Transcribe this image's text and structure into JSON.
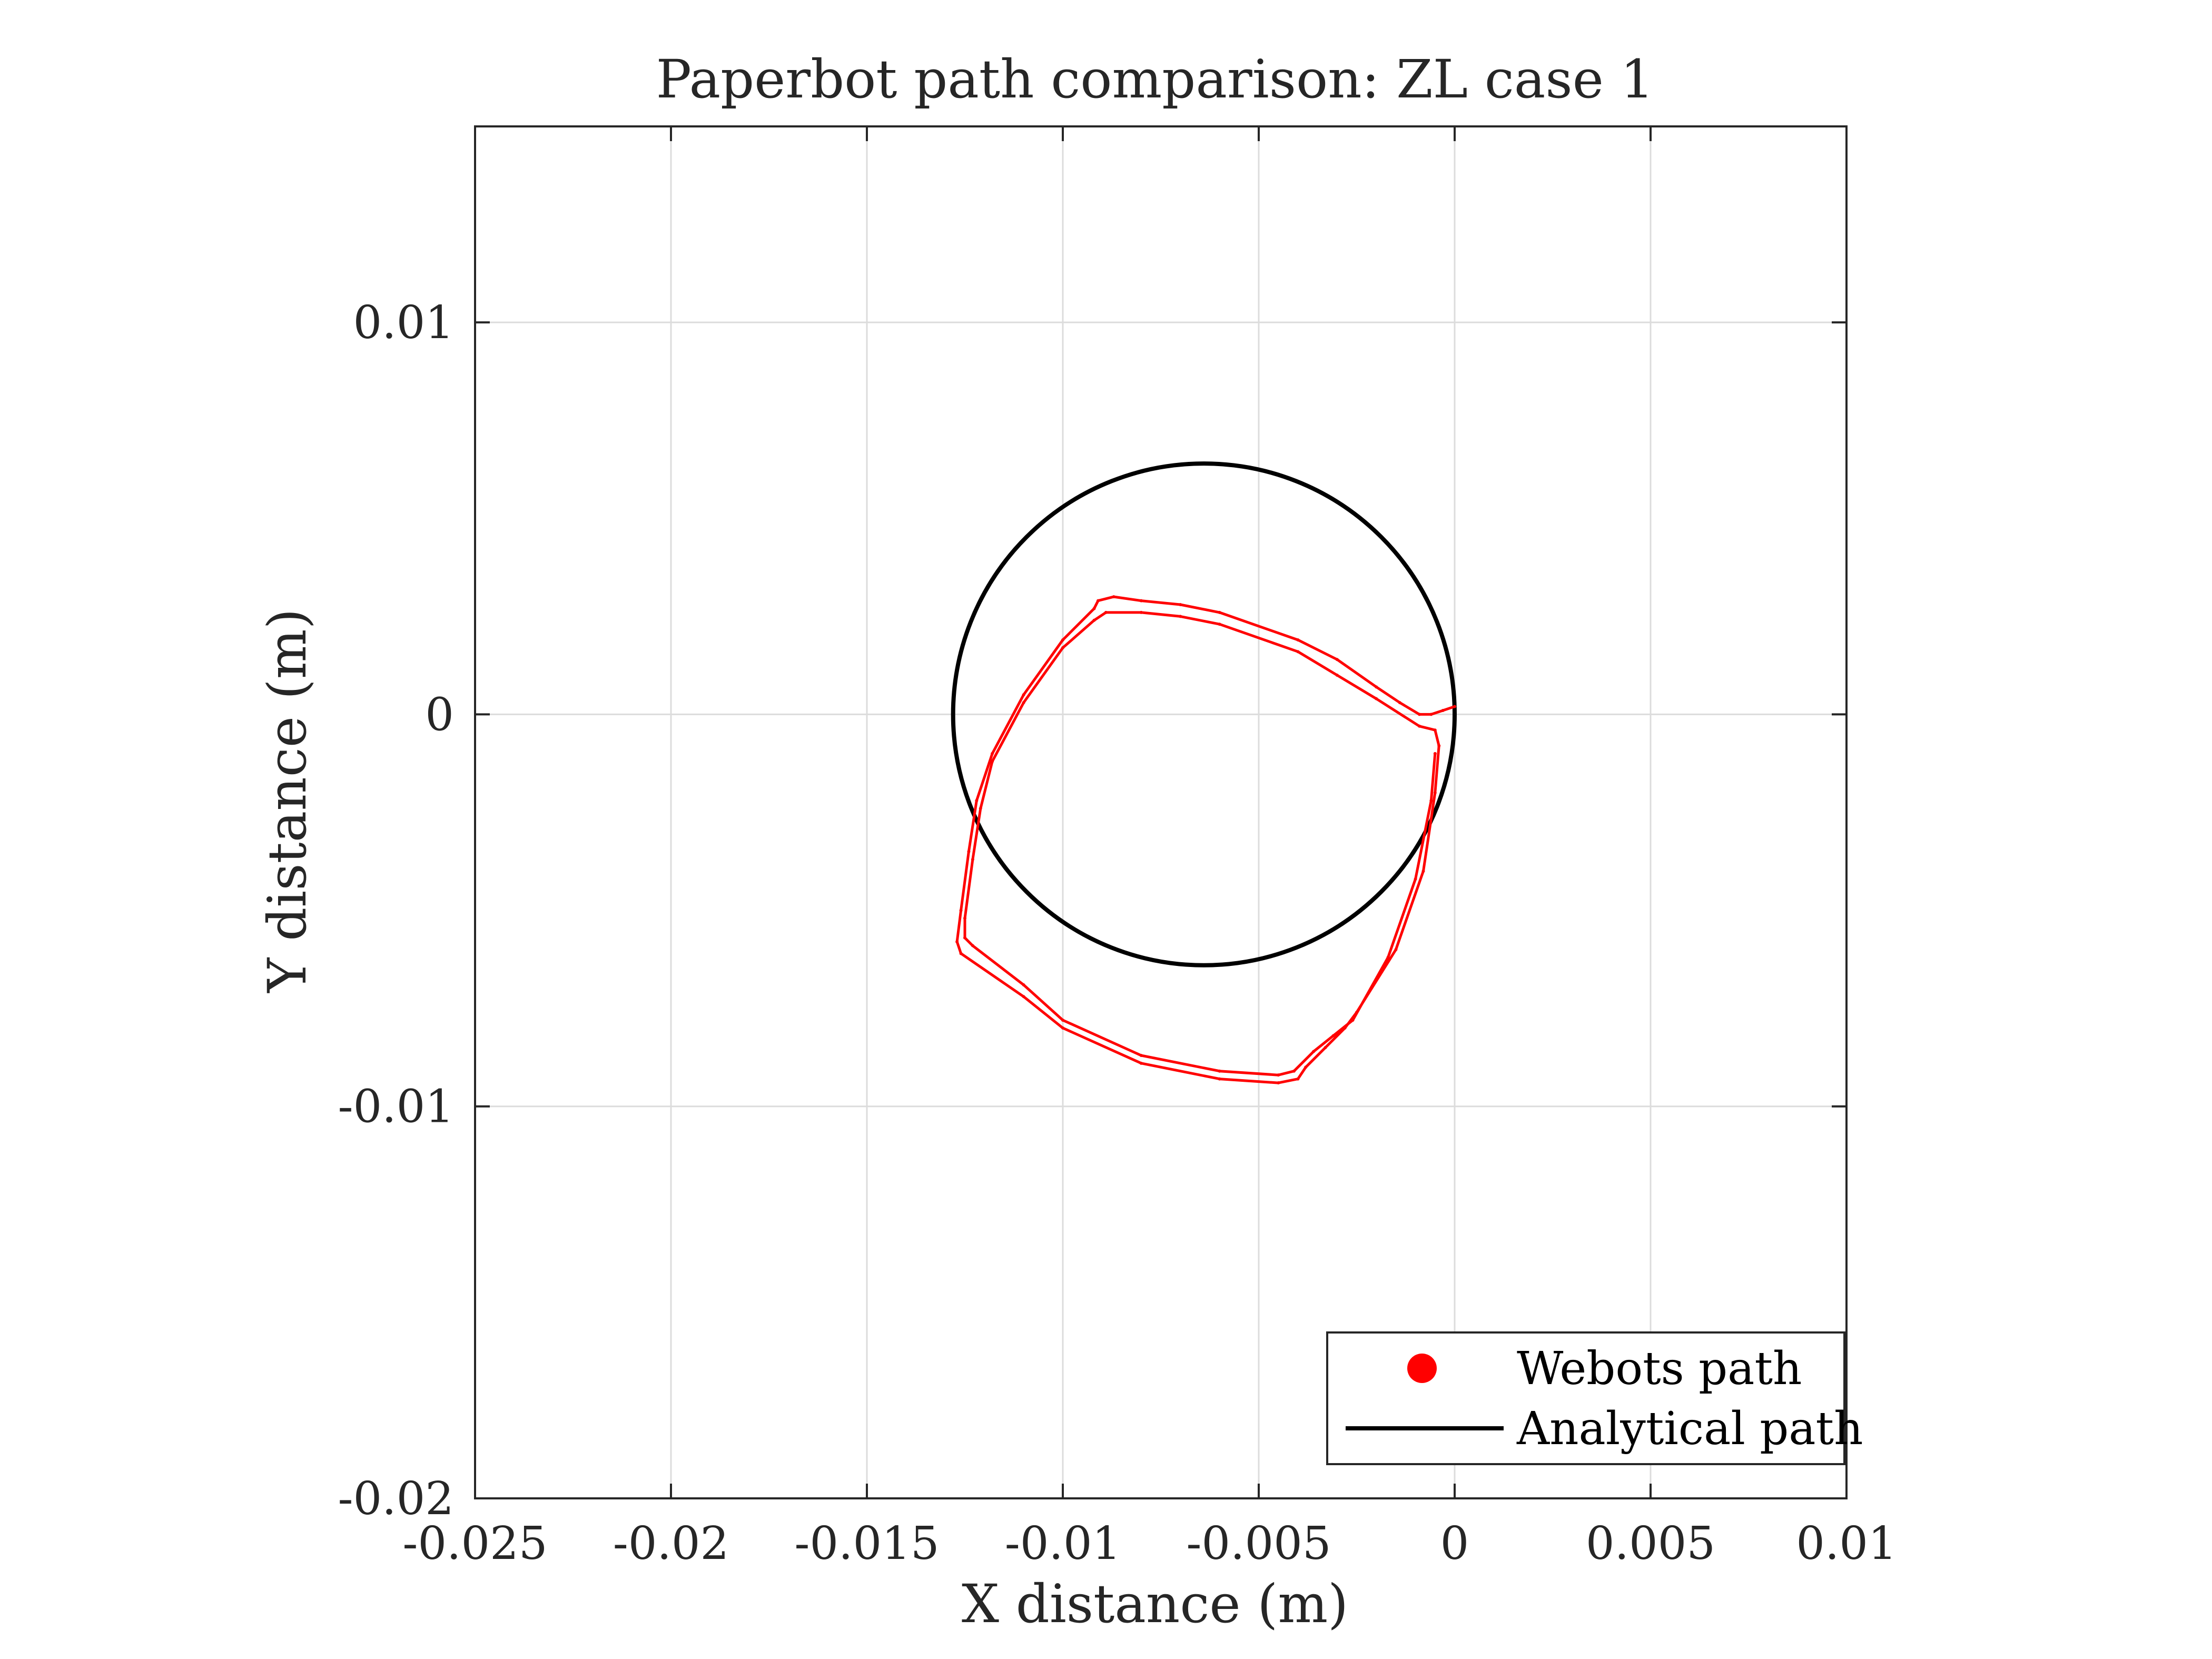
{
  "chart_data": {
    "type": "line",
    "title": "Paperbot path comparison: ZL case 1",
    "xlabel": "X distance (m)",
    "ylabel": "Y distance (m)",
    "xlim": [
      -0.025,
      0.01
    ],
    "ylim": [
      -0.02,
      0.015
    ],
    "xticks": [
      -0.025,
      -0.02,
      -0.015,
      -0.01,
      -0.005,
      0,
      0.005,
      0.01
    ],
    "xtick_labels": [
      "-0.025",
      "-0.02",
      "-0.015",
      "-0.01",
      "-0.005",
      "0",
      "0.005",
      "0.01"
    ],
    "yticks": [
      -0.02,
      -0.01,
      0,
      0.01
    ],
    "ytick_labels": [
      "-0.02",
      "-0.01",
      "0",
      "0.01"
    ],
    "grid": true,
    "legend_position": "bottom-right",
    "series": [
      {
        "name": "Webots path",
        "color": "#ff0000",
        "marker": "dot",
        "points": [
          [
            0,
            0.0002
          ],
          [
            -0.0003,
            0.0001
          ],
          [
            -0.0006,
            0.0
          ],
          [
            -0.0009,
            0.0
          ],
          [
            -0.0014,
            0.0003
          ],
          [
            -0.002,
            0.0007
          ],
          [
            -0.003,
            0.0014
          ],
          [
            -0.004,
            0.0019
          ],
          [
            -0.006,
            0.0026
          ],
          [
            -0.007,
            0.0028
          ],
          [
            -0.008,
            0.0029
          ],
          [
            -0.0087,
            0.003
          ],
          [
            -0.0091,
            0.0029
          ],
          [
            -0.0092,
            0.0027
          ],
          [
            -0.01,
            0.0019
          ],
          [
            -0.011,
            0.0005
          ],
          [
            -0.0118,
            -0.001
          ],
          [
            -0.0122,
            -0.0022
          ],
          [
            -0.0124,
            -0.0035
          ],
          [
            -0.0126,
            -0.005
          ],
          [
            -0.0127,
            -0.0058
          ],
          [
            -0.0126,
            -0.0061
          ],
          [
            -0.011,
            -0.0072
          ],
          [
            -0.01,
            -0.008
          ],
          [
            -0.008,
            -0.0089
          ],
          [
            -0.006,
            -0.0093
          ],
          [
            -0.0045,
            -0.0094
          ],
          [
            -0.004,
            -0.0093
          ],
          [
            -0.0038,
            -0.009
          ],
          [
            -0.0033,
            -0.0085
          ],
          [
            -0.0028,
            -0.008
          ],
          [
            -0.0025,
            -0.0076
          ],
          [
            -0.0015,
            -0.006
          ],
          [
            -0.0008,
            -0.004
          ],
          [
            -0.0005,
            -0.002
          ],
          [
            -0.0004,
            -0.0008
          ],
          [
            -0.0005,
            -0.0004
          ],
          [
            -0.0009,
            -0.0003
          ],
          [
            -0.002,
            0.0004
          ],
          [
            -0.003,
            0.001
          ],
          [
            -0.004,
            0.0016
          ],
          [
            -0.006,
            0.0023
          ],
          [
            -0.007,
            0.0025
          ],
          [
            -0.008,
            0.0026
          ],
          [
            -0.0089,
            0.0026
          ],
          [
            -0.0092,
            0.0024
          ],
          [
            -0.01,
            0.0017
          ],
          [
            -0.011,
            0.0003
          ],
          [
            -0.0118,
            -0.0012
          ],
          [
            -0.0121,
            -0.0024
          ],
          [
            -0.0123,
            -0.0037
          ],
          [
            -0.0125,
            -0.0052
          ],
          [
            -0.0125,
            -0.0057
          ],
          [
            -0.0123,
            -0.0059
          ],
          [
            -0.011,
            -0.0069
          ],
          [
            -0.01,
            -0.0078
          ],
          [
            -0.008,
            -0.0087
          ],
          [
            -0.006,
            -0.0091
          ],
          [
            -0.0045,
            -0.0092
          ],
          [
            -0.0041,
            -0.0091
          ],
          [
            -0.0036,
            -0.0086
          ],
          [
            -0.0031,
            -0.0082
          ],
          [
            -0.0026,
            -0.0078
          ],
          [
            -0.0017,
            -0.0062
          ],
          [
            -0.001,
            -0.0042
          ],
          [
            -0.0006,
            -0.0022
          ],
          [
            -0.0005,
            -0.001
          ]
        ]
      },
      {
        "name": "Analytical path",
        "color": "#000000",
        "marker": "line",
        "circle": {
          "center": [
            -0.0064,
            0
          ],
          "radius": 0.0064
        }
      }
    ]
  }
}
